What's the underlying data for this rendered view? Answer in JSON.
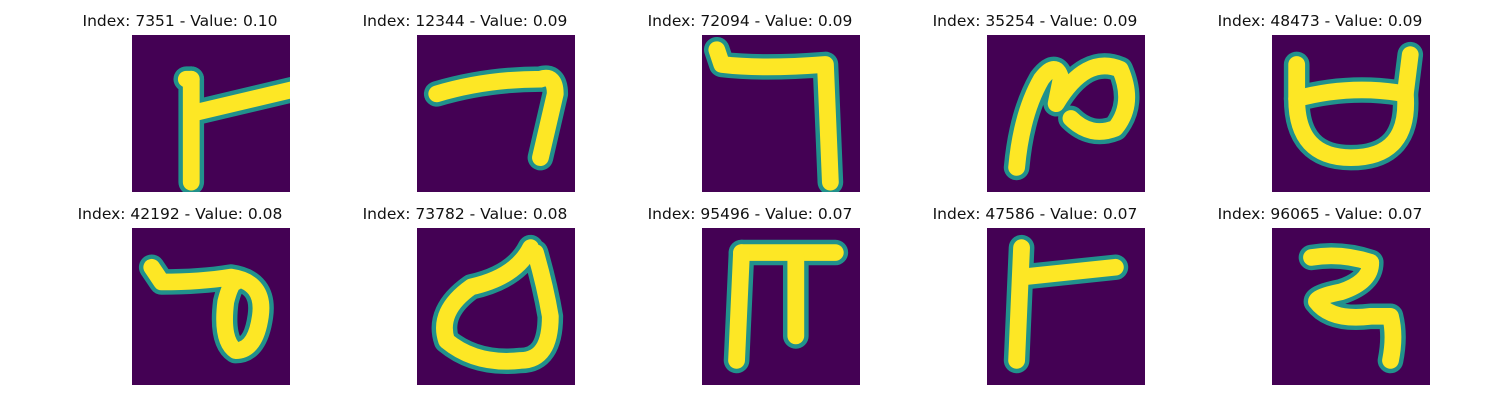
{
  "chart_data": {
    "type": "image-grid",
    "layout": "2 rows x 5 columns",
    "colormap": "viridis",
    "background_color": "#440154",
    "stroke_color": "#fde725",
    "edge_color": "#21918c",
    "axes_visible": false,
    "panels": [
      {
        "title": "Index: 7351 - Value: 0.10",
        "index": 7351,
        "value": 0.1,
        "glyph": "Devanagari-like character with a vertical stroke and a horizontal bar extending right from its middle",
        "strokes": [
          "M12,9 L12,30 M12,16 L33,11",
          "M11,9 L12,9"
        ]
      },
      {
        "title": "Index: 12344 - Value: 0.09",
        "index": 12344,
        "value": 0.09,
        "glyph": "horizontal stroke across the upper middle with a descending diagonal tail down to the lower right",
        "strokes": [
          "M4,12 Q14,9 25,9 Q28,8 28,12 L25,25"
        ]
      },
      {
        "title": "Index: 72094 - Value: 0.09",
        "index": 72094,
        "value": 0.09,
        "glyph": "top horizontal bar with a small left hook, turning down into a long vertical stroke on the right",
        "strokes": [
          "M3,3 L4,6 Q12,7 25,6 L26,30"
        ]
      },
      {
        "title": "Index: 35254 - Value: 0.09",
        "index": 35254,
        "value": 0.09,
        "glyph": "diagonal stroke rising from the lower left into a loop with a curl at the upper right",
        "strokes": [
          "M6,27 Q7,16 11,9 Q14,5 15,9 L14,14 Q20,4 27,7 Q30,14 26,19 Q21,21 17,17"
        ]
      },
      {
        "title": "Index: 48473 - Value: 0.09",
        "index": 48473,
        "value": 0.09,
        "glyph": "rounded bowl-shaped loop with two short upward horns at the top corners",
        "strokes": [
          "M5,6 L5,13 Q5,25 16,25 Q28,25 27,12 L28,4",
          "M5,13 Q16,10 27,12"
        ]
      },
      {
        "title": "Index: 42192 - Value: 0.08",
        "index": 42192,
        "value": 0.08,
        "glyph": "horizontal stroke from the left into a tall narrow loop on the right side",
        "strokes": [
          "M4,8 L6,11 Q14,11 20,10 Q27,11 26,18 Q25,25 21,25 Q18,23 19,15 Q20,11 21,11"
        ]
      },
      {
        "title": "Index: 73782 - Value: 0.08",
        "index": 73782,
        "value": 0.08,
        "glyph": "large rounded bowl loop with a tall hook rising at the upper right",
        "strokes": [
          "M23,4 Q20,10 11,12 Q4,17 6,23 Q12,28 21,27 Q27,27 27,18 Q26,12 24,5"
        ]
      },
      {
        "title": "Index: 95496 - Value: 0.07",
        "index": 95496,
        "value": 0.07,
        "glyph": "pi-like shape with a top bar and two long vertical legs",
        "strokes": [
          "M8,5 L27,5",
          "M8,5 L7,27",
          "M19,6 L19,22"
        ]
      },
      {
        "title": "Index: 47586 - Value: 0.07",
        "index": 47586,
        "value": 0.07,
        "glyph": "tall vertical stroke with a horizontal bar extending right from its middle",
        "strokes": [
          "M7,4 L6,27",
          "M7,10 L26,8"
        ]
      },
      {
        "title": "Index: 96065 - Value: 0.07",
        "index": 96065,
        "value": 0.07,
        "glyph": "reversed-S curve with a horizontal base stroke and a descending right tail",
        "strokes": [
          "M8,6 Q14,5 20,7 Q20,11 14,13 Q9,14 9,15 Q12,19 20,18 L24,18 Q25,22 24,27"
        ]
      }
    ]
  }
}
